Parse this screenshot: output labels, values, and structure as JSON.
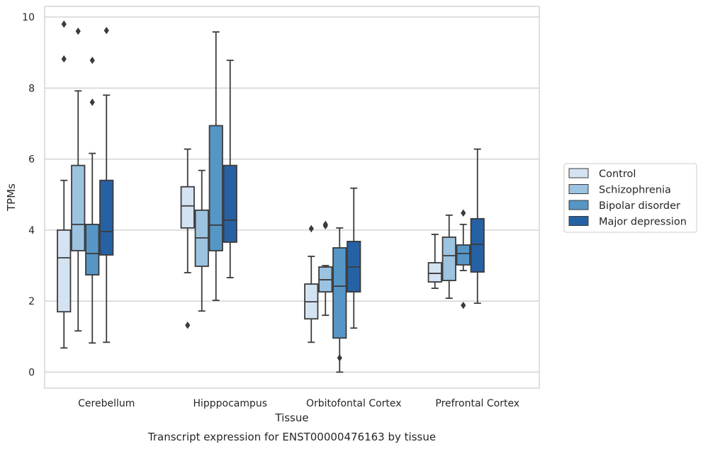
{
  "chart_data": {
    "type": "boxplot",
    "xlabel": "Tissue",
    "ylabel": "TPMs",
    "ylim": [
      -0.45,
      10.3
    ],
    "yticks": [
      0,
      2,
      4,
      6,
      8,
      10
    ],
    "categories": [
      "Cerebellum",
      "Hipppocampus",
      "Orbitofontal Cortex",
      "Prefrontal Cortex"
    ],
    "grid": true,
    "legend_position": "right",
    "series": [
      {
        "name": "Control",
        "color": "#d4e3f2",
        "boxes": [
          {
            "whislo": 0.68,
            "q1": 1.7,
            "med": 3.22,
            "q3": 4.0,
            "whishi": 5.4,
            "fliers": []
          },
          {
            "whislo": 2.8,
            "q1": 4.06,
            "med": 4.68,
            "q3": 5.22,
            "whishi": 6.28,
            "fliers": [
              1.32
            ]
          },
          {
            "whislo": 0.84,
            "q1": 1.5,
            "med": 1.98,
            "q3": 2.48,
            "whishi": 3.26,
            "fliers": [
              4.04
            ]
          },
          {
            "whislo": 2.36,
            "q1": 2.54,
            "med": 2.78,
            "q3": 3.08,
            "whishi": 3.88,
            "fliers": []
          }
        ]
      },
      {
        "name": "Schizophrenia",
        "color": "#9cc4e0",
        "boxes": [
          {
            "whislo": 1.16,
            "q1": 3.42,
            "med": 4.16,
            "q3": 5.82,
            "whishi": 7.92,
            "fliers": [
              9.6
            ]
          },
          {
            "whislo": 1.72,
            "q1": 2.98,
            "med": 3.78,
            "q3": 4.56,
            "whishi": 5.68,
            "fliers": []
          },
          {
            "whislo": 1.6,
            "q1": 2.26,
            "med": 2.6,
            "q3": 2.96,
            "whishi": 3.0,
            "fliers": [
              4.12,
              4.16
            ]
          },
          {
            "whislo": 2.08,
            "q1": 2.58,
            "med": 3.28,
            "q3": 3.8,
            "whishi": 4.42,
            "fliers": []
          }
        ]
      },
      {
        "name": "Bipolar disorder",
        "color": "#5596c6",
        "boxes": [
          {
            "whislo": 0.82,
            "q1": 2.74,
            "med": 3.34,
            "q3": 4.16,
            "whishi": 6.16,
            "fliers": [
              8.78,
              7.6
            ]
          },
          {
            "whislo": 2.02,
            "q1": 3.42,
            "med": 4.14,
            "q3": 6.94,
            "whishi": 9.58,
            "fliers": []
          },
          {
            "whislo": 0.0,
            "q1": 0.96,
            "med": 2.42,
            "q3": 3.5,
            "whishi": 4.06,
            "fliers": [
              0.4
            ]
          },
          {
            "whislo": 2.86,
            "q1": 3.02,
            "med": 3.34,
            "q3": 3.58,
            "whishi": 4.16,
            "fliers": [
              4.48,
              1.88
            ]
          }
        ]
      },
      {
        "name": "Major depression",
        "color": "#2662a3",
        "boxes": [
          {
            "whislo": 0.84,
            "q1": 3.3,
            "med": 3.96,
            "q3": 5.4,
            "whishi": 7.8,
            "fliers": [
              9.62
            ]
          },
          {
            "whislo": 2.66,
            "q1": 3.66,
            "med": 4.28,
            "q3": 5.82,
            "whishi": 8.78,
            "fliers": []
          },
          {
            "whislo": 1.24,
            "q1": 2.26,
            "med": 2.96,
            "q3": 3.68,
            "whishi": 5.18,
            "fliers": []
          },
          {
            "whislo": 1.94,
            "q1": 2.82,
            "med": 3.6,
            "q3": 4.32,
            "whishi": 6.28,
            "fliers": []
          }
        ]
      }
    ],
    "extra_fliers": [
      {
        "category": 0,
        "series": 0,
        "values": [
          9.8,
          8.82
        ]
      }
    ],
    "caption": "Transcript expression for ENST00000476163 by tissue"
  }
}
